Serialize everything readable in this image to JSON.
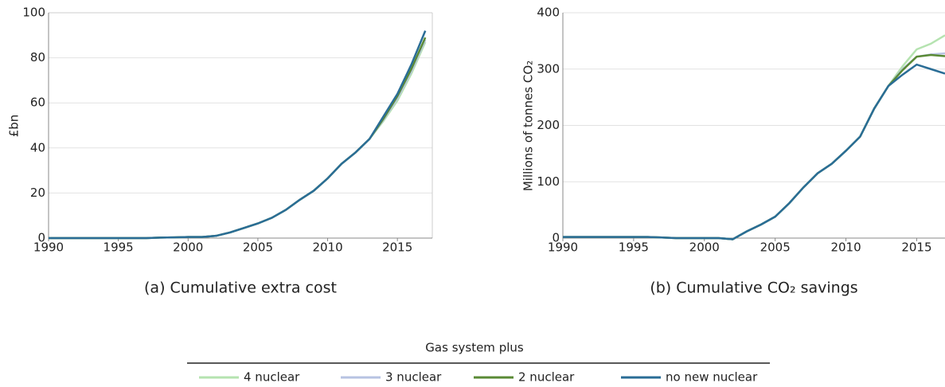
{
  "chart_data": [
    {
      "type": "line",
      "caption": "(a) Cumulative extra cost",
      "ylabel": "£bn",
      "x": [
        1990,
        1991,
        1992,
        1993,
        1994,
        1995,
        1996,
        1997,
        1998,
        1999,
        2000,
        2001,
        2002,
        2003,
        2004,
        2005,
        2006,
        2007,
        2008,
        2009,
        2010,
        2011,
        2012,
        2013,
        2014,
        2015,
        2016,
        2017
      ],
      "xlim": [
        1990,
        2017.5
      ],
      "xticks": [
        1990,
        1995,
        2000,
        2005,
        2010,
        2015
      ],
      "ylim": [
        0,
        100
      ],
      "yticks": [
        0,
        20,
        40,
        60,
        80,
        100
      ],
      "grid": true,
      "series": [
        {
          "name": "4 nuclear",
          "color": "#b5e3b0",
          "values": [
            0,
            0,
            0,
            0,
            0,
            0,
            0,
            0,
            0.2,
            0.3,
            0.5,
            0.5,
            1,
            2.5,
            4.5,
            6.5,
            9,
            12.5,
            17,
            21,
            26.5,
            33,
            38,
            44,
            52,
            61,
            73,
            87
          ]
        },
        {
          "name": "3 nuclear",
          "color": "#b7c3e2",
          "values": [
            0,
            0,
            0,
            0,
            0,
            0,
            0,
            0,
            0.2,
            0.3,
            0.5,
            0.5,
            1,
            2.5,
            4.5,
            6.5,
            9,
            12.5,
            17,
            21,
            26.5,
            33,
            38,
            44,
            52.5,
            62,
            74,
            88
          ]
        },
        {
          "name": "2 nuclear",
          "color": "#5a8a35",
          "values": [
            0,
            0,
            0,
            0,
            0,
            0,
            0,
            0,
            0.2,
            0.3,
            0.5,
            0.5,
            1,
            2.5,
            4.5,
            6.5,
            9,
            12.5,
            17,
            21,
            26.5,
            33,
            38,
            44,
            53,
            63,
            75,
            89
          ]
        },
        {
          "name": "no new nuclear",
          "color": "#2a6d96",
          "values": [
            0,
            0,
            0,
            0,
            0,
            0,
            0,
            0,
            0.2,
            0.3,
            0.5,
            0.5,
            1,
            2.5,
            4.5,
            6.5,
            9,
            12.5,
            17,
            21,
            26.5,
            33,
            38,
            44,
            54,
            64,
            77,
            92
          ]
        }
      ]
    },
    {
      "type": "line",
      "caption": "(b) Cumulative CO₂ savings",
      "ylabel": "Millions of tonnes CO₂",
      "x": [
        1990,
        1991,
        1992,
        1993,
        1994,
        1995,
        1996,
        1997,
        1998,
        1999,
        2000,
        2001,
        2002,
        2003,
        2004,
        2005,
        2006,
        2007,
        2008,
        2009,
        2010,
        2011,
        2012,
        2013,
        2014,
        2015,
        2016,
        2017
      ],
      "xlim": [
        1990,
        2017
      ],
      "xticks": [
        1990,
        1995,
        2000,
        2005,
        2010,
        2015
      ],
      "ylim": [
        0,
        400
      ],
      "yticks": [
        0,
        100,
        200,
        300,
        400
      ],
      "grid": true,
      "series": [
        {
          "name": "4 nuclear",
          "color": "#b5e3b0",
          "values": [
            2,
            2,
            2,
            2,
            2,
            2,
            2,
            1,
            0,
            0,
            0,
            0,
            -2,
            12,
            24,
            38,
            62,
            90,
            115,
            132,
            155,
            180,
            230,
            270,
            305,
            335,
            345,
            360
          ]
        },
        {
          "name": "3 nuclear",
          "color": "#b7c3e2",
          "values": [
            2,
            2,
            2,
            2,
            2,
            2,
            2,
            1,
            0,
            0,
            0,
            0,
            -2,
            12,
            24,
            38,
            62,
            90,
            115,
            132,
            155,
            180,
            230,
            270,
            300,
            322,
            326,
            328
          ]
        },
        {
          "name": "2 nuclear",
          "color": "#5a8a35",
          "values": [
            2,
            2,
            2,
            2,
            2,
            2,
            2,
            1,
            0,
            0,
            0,
            0,
            -2,
            12,
            24,
            38,
            62,
            90,
            115,
            132,
            155,
            180,
            230,
            270,
            298,
            322,
            325,
            323
          ]
        },
        {
          "name": "no new nuclear",
          "color": "#2a6d96",
          "values": [
            2,
            2,
            2,
            2,
            2,
            2,
            2,
            1,
            0,
            0,
            0,
            0,
            -2,
            12,
            24,
            38,
            62,
            90,
            115,
            132,
            155,
            180,
            230,
            270,
            290,
            308,
            300,
            292
          ]
        }
      ]
    }
  ],
  "legend": {
    "title": "Gas system plus"
  }
}
